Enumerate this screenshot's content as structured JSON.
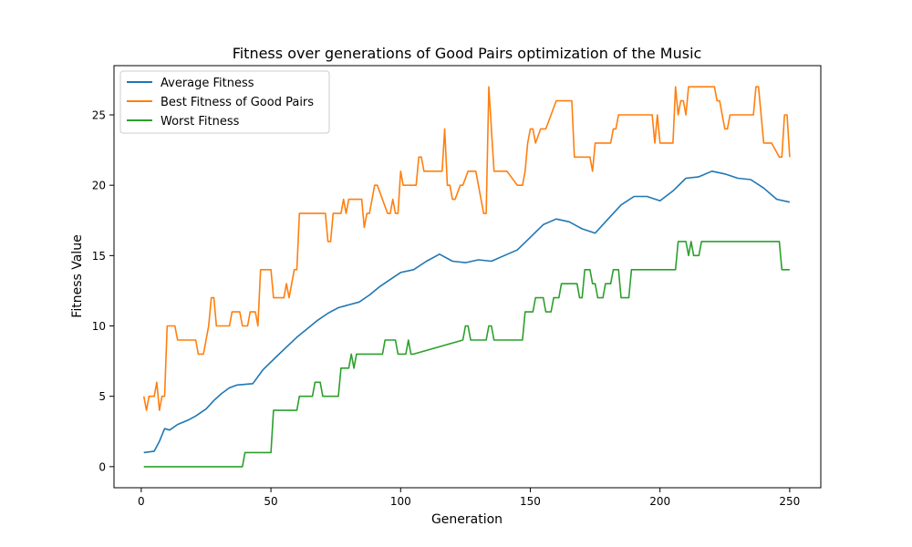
{
  "chart_data": {
    "type": "line",
    "title": "Fitness over generations of Good Pairs optimization of the Music",
    "xlabel": "Generation",
    "ylabel": "Fitness Value",
    "xlim": [
      -10.5,
      262
    ],
    "ylim": [
      -1.5,
      28.5
    ],
    "xticks": [
      0,
      50,
      100,
      150,
      200,
      250
    ],
    "yticks": [
      0,
      5,
      10,
      15,
      20,
      25
    ],
    "legend_position": "top-left",
    "grid": false,
    "series": [
      {
        "name": "Average Fitness",
        "color": "#1f77b4",
        "x": [
          1,
          5,
          7,
          9,
          11,
          14,
          18,
          21,
          25,
          28,
          31,
          34,
          37,
          43,
          47,
          52,
          56,
          60,
          64,
          68,
          72,
          76,
          80,
          84,
          88,
          92,
          96,
          100,
          105,
          110,
          115,
          120,
          125,
          130,
          135,
          140,
          145,
          150,
          155,
          160,
          165,
          170,
          175,
          180,
          185,
          190,
          195,
          200,
          205,
          210,
          215,
          220,
          225,
          230,
          235,
          240,
          245,
          250
        ],
        "y": [
          1.0,
          1.1,
          1.8,
          2.7,
          2.6,
          3.0,
          3.3,
          3.6,
          4.1,
          4.7,
          5.2,
          5.6,
          5.8,
          5.9,
          6.9,
          7.8,
          8.5,
          9.2,
          9.8,
          10.4,
          10.9,
          11.3,
          11.5,
          11.7,
          12.2,
          12.8,
          13.3,
          13.8,
          14.0,
          14.6,
          15.1,
          14.6,
          14.5,
          14.7,
          14.6,
          15.0,
          15.4,
          16.3,
          17.2,
          17.6,
          17.4,
          16.9,
          16.6,
          17.6,
          18.6,
          19.2,
          19.2,
          18.9,
          19.6,
          20.5,
          20.6,
          21.0,
          20.8,
          20.5,
          20.4,
          19.8,
          19.0,
          18.8
        ]
      },
      {
        "name": "Best Fitness of Good Pairs",
        "color": "#ff7f0e",
        "x": [
          1,
          2,
          3,
          5,
          6,
          7,
          8,
          9,
          10,
          13,
          14,
          18,
          21,
          22,
          24,
          26,
          27,
          28,
          29,
          34,
          35,
          38,
          39,
          41,
          42,
          44,
          45,
          46,
          49,
          50,
          51,
          55,
          56,
          57,
          58,
          59,
          60,
          61,
          62,
          71,
          72,
          73,
          74,
          77,
          78,
          79,
          80,
          85,
          86,
          87,
          88,
          90,
          91,
          95,
          96,
          97,
          98,
          99,
          100,
          101,
          102,
          106,
          107,
          108,
          109,
          116,
          117,
          118,
          119,
          120,
          121,
          123,
          124,
          126,
          127,
          129,
          130,
          132,
          133,
          134,
          135,
          136,
          140,
          141,
          145,
          146,
          147,
          148,
          149,
          150,
          151,
          152,
          154,
          155,
          156,
          160,
          161,
          166,
          167,
          172,
          173,
          174,
          175,
          176,
          180,
          181,
          182,
          183,
          184,
          185,
          186,
          197,
          198,
          199,
          200,
          201,
          205,
          206,
          207,
          208,
          209,
          210,
          211,
          212,
          221,
          222,
          223,
          224,
          225,
          226,
          227,
          235,
          236,
          237,
          238,
          240,
          241,
          242,
          243,
          246,
          247,
          248,
          249,
          250
        ],
        "y": [
          5,
          4,
          5,
          5,
          6,
          4,
          5,
          5,
          10,
          10,
          9,
          9,
          9,
          8,
          8,
          10,
          12,
          12,
          10,
          10,
          11,
          11,
          10,
          10,
          11,
          11,
          10,
          14,
          14,
          14,
          12,
          12,
          13,
          12,
          13,
          14,
          14,
          18,
          18,
          18,
          16,
          16,
          18,
          18,
          19,
          18,
          19,
          19,
          17,
          18,
          18,
          20,
          20,
          18,
          18,
          19,
          18,
          18,
          21,
          20,
          20,
          20,
          22,
          22,
          21,
          21,
          24,
          20,
          20,
          19,
          19,
          20,
          20,
          21,
          21,
          21,
          20,
          18,
          18,
          27,
          24,
          21,
          21,
          21,
          20,
          20,
          20,
          21,
          23,
          24,
          24,
          23,
          24,
          24,
          24,
          26,
          26,
          26,
          22,
          22,
          22,
          21,
          23,
          23,
          23,
          23,
          24,
          24,
          25,
          25,
          25,
          25,
          23,
          25,
          23,
          23,
          23,
          27,
          25,
          26,
          26,
          25,
          27,
          27,
          27,
          26,
          26,
          25,
          24,
          24,
          25,
          25,
          25,
          27,
          27,
          23,
          23,
          23,
          23,
          22,
          22,
          25,
          25,
          22
        ],
        "y_fix": null
      },
      {
        "name": "Worst Fitness",
        "color": "#2ca02c",
        "x": [
          1,
          39,
          40,
          50,
          51,
          60,
          61,
          66,
          67,
          69,
          70,
          76,
          77,
          80,
          81,
          82,
          83,
          93,
          94,
          98,
          99,
          102,
          103,
          104,
          105,
          124,
          125,
          126,
          127,
          133,
          134,
          135,
          136,
          147,
          148,
          151,
          152,
          155,
          156,
          158,
          159,
          161,
          162,
          168,
          169,
          170,
          171,
          173,
          174,
          175,
          176,
          178,
          179,
          181,
          182,
          184,
          185,
          187,
          188,
          189,
          190,
          206,
          207,
          210,
          211,
          212,
          213,
          215,
          216,
          244,
          245,
          246,
          247,
          250
        ],
        "y": [
          0,
          0,
          1,
          1,
          4,
          4,
          5,
          5,
          6,
          6,
          5,
          5,
          7,
          7,
          8,
          7,
          8,
          8,
          9,
          9,
          8,
          8,
          9,
          8,
          8,
          9,
          10,
          10,
          9,
          9,
          10,
          10,
          9,
          9,
          11,
          11,
          12,
          12,
          11,
          11,
          12,
          12,
          13,
          13,
          12,
          12,
          14,
          14,
          13,
          13,
          12,
          12,
          13,
          13,
          14,
          14,
          12,
          12,
          12,
          14,
          14,
          14,
          16,
          16,
          15,
          16,
          15,
          15,
          16,
          16,
          16,
          16,
          14,
          14
        ]
      }
    ]
  }
}
